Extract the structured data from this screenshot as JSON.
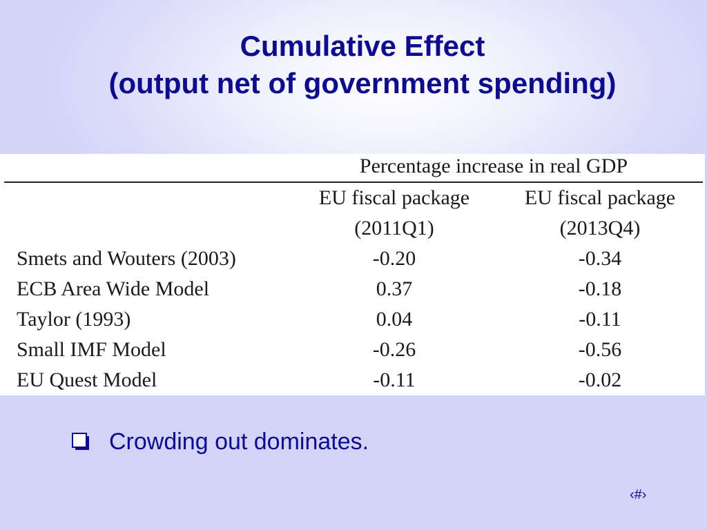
{
  "slide": {
    "title_line1": "Cumulative Effect",
    "title_line2": "(output net of government spending)",
    "slide_number": "‹#›"
  },
  "table": {
    "group_header": "Percentage increase in real GDP",
    "columns": [
      {
        "line1": "EU fiscal package",
        "line2": "(2011Q1)"
      },
      {
        "line1": "EU fiscal package",
        "line2": "(2013Q4)"
      }
    ],
    "rows": [
      {
        "label": "Smets and Wouters (2003)",
        "values": [
          "-0.20",
          "-0.34"
        ]
      },
      {
        "label": "ECB Area Wide Model",
        "values": [
          "0.37",
          "-0.18"
        ]
      },
      {
        "label": "Taylor (1993)",
        "values": [
          "0.04",
          "-0.11"
        ]
      },
      {
        "label": "Small IMF Model",
        "values": [
          "-0.26",
          "-0.56"
        ]
      },
      {
        "label": "EU Quest Model",
        "values": [
          "-0.11",
          "-0.02"
        ]
      }
    ]
  },
  "bullets": [
    {
      "icon": "hollow-square-bullet-icon",
      "text": "Crowding out dominates."
    }
  ],
  "colors": {
    "title": "#0c0c8c",
    "background": "#d3d3f8",
    "table_background": "#ffffff",
    "table_text": "#1a1a1a"
  }
}
